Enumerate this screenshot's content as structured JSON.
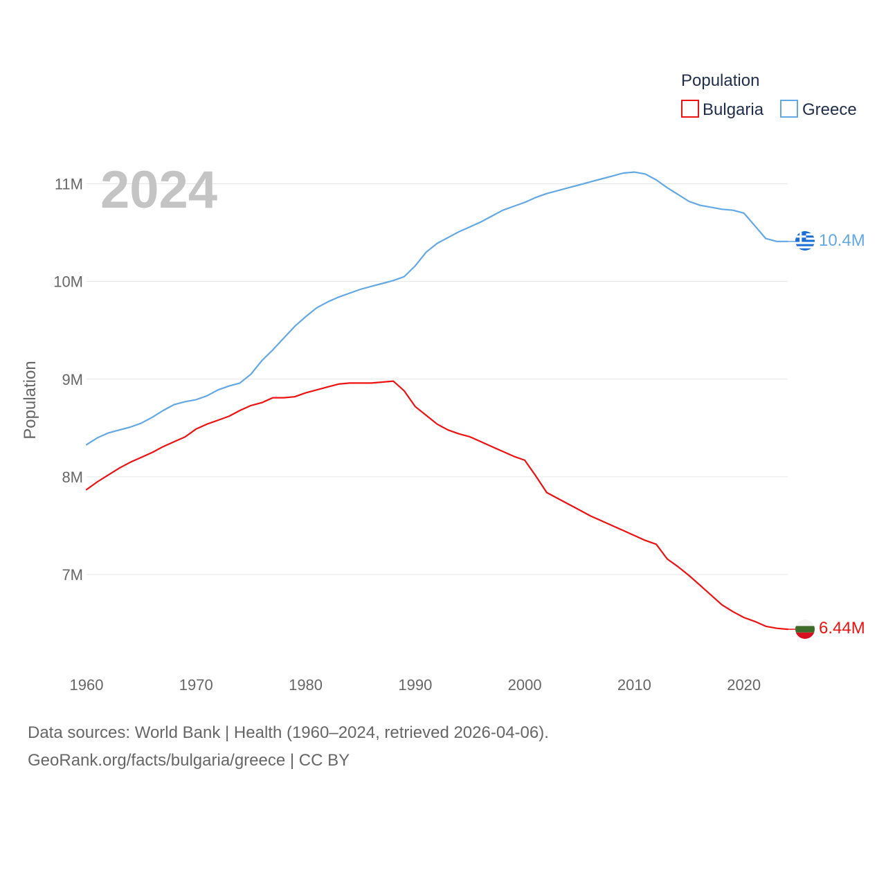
{
  "chart_data": {
    "type": "line",
    "title": "Population",
    "ylabel": "Population",
    "xlabel": "",
    "year_label": "2024",
    "xlim": [
      1960,
      2024
    ],
    "ylim": [
      6150000,
      11500000
    ],
    "x_ticks": [
      1960,
      1970,
      1980,
      1990,
      2000,
      2010,
      2020
    ],
    "y_ticks": [
      {
        "value": 7000000,
        "label": "7M"
      },
      {
        "value": 8000000,
        "label": "8M"
      },
      {
        "value": 9000000,
        "label": "9M"
      },
      {
        "value": 10000000,
        "label": "10M"
      },
      {
        "value": 11000000,
        "label": "11M"
      }
    ],
    "legend": {
      "title": "Population",
      "position": "top-right"
    },
    "series": [
      {
        "name": "Bulgaria",
        "color": "#ee1111",
        "end_label": "6.44M",
        "flag_icon": "bulgaria-flag-icon",
        "x": [
          1960,
          1961,
          1962,
          1963,
          1964,
          1965,
          1966,
          1967,
          1968,
          1969,
          1970,
          1971,
          1972,
          1973,
          1974,
          1975,
          1976,
          1977,
          1978,
          1979,
          1980,
          1981,
          1982,
          1983,
          1984,
          1985,
          1986,
          1987,
          1988,
          1989,
          1990,
          1991,
          1992,
          1993,
          1994,
          1995,
          1996,
          1997,
          1998,
          1999,
          2000,
          2001,
          2002,
          2003,
          2004,
          2005,
          2006,
          2007,
          2008,
          2009,
          2010,
          2011,
          2012,
          2013,
          2014,
          2015,
          2016,
          2017,
          2018,
          2019,
          2020,
          2021,
          2022,
          2023,
          2024
        ],
        "values": [
          7870000,
          7950000,
          8020000,
          8090000,
          8150000,
          8200000,
          8250000,
          8310000,
          8360000,
          8410000,
          8490000,
          8540000,
          8580000,
          8620000,
          8680000,
          8730000,
          8760000,
          8810000,
          8810000,
          8820000,
          8860000,
          8890000,
          8920000,
          8950000,
          8960000,
          8960000,
          8960000,
          8970000,
          8980000,
          8880000,
          8720000,
          8630000,
          8540000,
          8480000,
          8440000,
          8410000,
          8360000,
          8310000,
          8260000,
          8210000,
          8170000,
          8010000,
          7840000,
          7780000,
          7720000,
          7660000,
          7600000,
          7550000,
          7500000,
          7450000,
          7400000,
          7350000,
          7310000,
          7160000,
          7080000,
          6990000,
          6890000,
          6790000,
          6690000,
          6620000,
          6560000,
          6520000,
          6470000,
          6450000,
          6440000
        ]
      },
      {
        "name": "Greece",
        "color": "#62a8e5",
        "end_label": "10.4M",
        "flag_icon": "greece-flag-icon",
        "x": [
          1960,
          1961,
          1962,
          1963,
          1964,
          1965,
          1966,
          1967,
          1968,
          1969,
          1970,
          1971,
          1972,
          1973,
          1974,
          1975,
          1976,
          1977,
          1978,
          1979,
          1980,
          1981,
          1982,
          1983,
          1984,
          1985,
          1986,
          1987,
          1988,
          1989,
          1990,
          1991,
          1992,
          1993,
          1994,
          1995,
          1996,
          1997,
          1998,
          1999,
          2000,
          2001,
          2002,
          2003,
          2004,
          2005,
          2006,
          2007,
          2008,
          2009,
          2010,
          2011,
          2012,
          2013,
          2014,
          2015,
          2016,
          2017,
          2018,
          2019,
          2020,
          2021,
          2022,
          2023,
          2024
        ],
        "values": [
          8330000,
          8400000,
          8450000,
          8480000,
          8510000,
          8550000,
          8610000,
          8680000,
          8740000,
          8770000,
          8790000,
          8830000,
          8890000,
          8930000,
          8960000,
          9050000,
          9190000,
          9300000,
          9420000,
          9540000,
          9640000,
          9730000,
          9790000,
          9840000,
          9880000,
          9920000,
          9950000,
          9980000,
          10010000,
          10050000,
          10160000,
          10300000,
          10390000,
          10450000,
          10510000,
          10560000,
          10610000,
          10670000,
          10730000,
          10770000,
          10810000,
          10860000,
          10900000,
          10930000,
          10960000,
          10990000,
          11020000,
          11050000,
          11080000,
          11110000,
          11120000,
          11100000,
          11040000,
          10960000,
          10890000,
          10820000,
          10780000,
          10760000,
          10740000,
          10730000,
          10700000,
          10570000,
          10440000,
          10410000,
          10410000
        ]
      }
    ]
  },
  "footer": {
    "sources_line": "Data sources: World Bank | Health (1960–2024, retrieved 2026-04-06).",
    "attribution_line": "GeoRank.org/facts/bulgaria/greece | CC BY"
  }
}
